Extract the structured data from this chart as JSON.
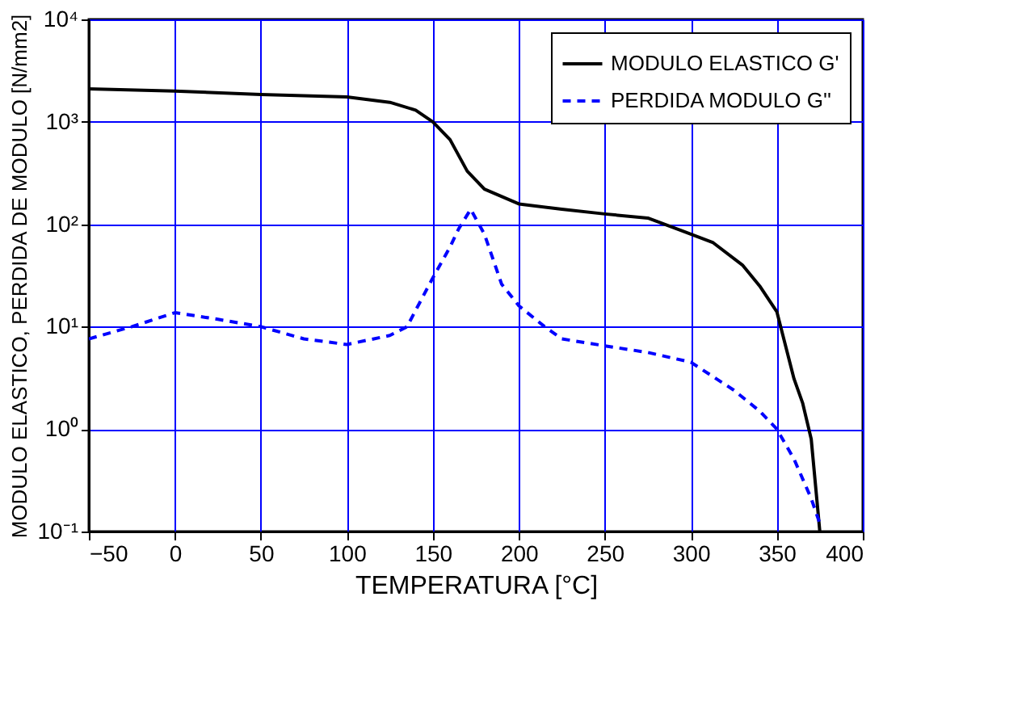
{
  "chart_data": {
    "type": "line",
    "xlabel": "TEMPERATURA [°C]",
    "ylabel": "MODULO ELASTICO, PERDIDA DE MODULO [N/mm2]",
    "xlim": [
      -50,
      400
    ],
    "xticks": [
      -50,
      0,
      50,
      100,
      150,
      200,
      250,
      300,
      350,
      400
    ],
    "ylim": [
      0.1,
      10000
    ],
    "yticks": [
      {
        "value": 0.1,
        "label": "10⁻¹"
      },
      {
        "value": 1,
        "label": "10⁰"
      },
      {
        "value": 10,
        "label": "10¹"
      },
      {
        "value": 100,
        "label": "10²"
      },
      {
        "value": 1000,
        "label": "10³"
      },
      {
        "value": 10000,
        "label": "10⁴"
      }
    ],
    "log": "y",
    "grid": true,
    "legend": "top right",
    "marker": "none",
    "series": [
      {
        "name": "MODULO ELASTICO G'",
        "color": "#000000",
        "line_style": "solid",
        "x": [
          -50,
          0,
          50,
          100,
          125,
          140,
          150,
          160,
          170,
          180,
          200,
          225,
          250,
          275,
          296,
          313,
          330,
          340,
          350,
          360,
          365,
          370,
          375
        ],
        "values": [
          2100,
          2000,
          1850,
          1750,
          1550,
          1300,
          1000,
          670,
          330,
          220,
          158,
          140,
          126,
          115,
          85,
          66,
          40,
          25,
          14,
          3.1,
          1.8,
          0.8,
          0.1
        ]
      },
      {
        "name": "PERDIDA MODULO G''",
        "color": "#0000ff",
        "line_style": "dashed",
        "x": [
          -50,
          -25,
          0,
          25,
          50,
          75,
          100,
          125,
          135,
          150,
          160,
          165,
          172,
          180,
          190,
          200,
          215,
          225,
          250,
          275,
          300,
          325,
          340,
          350,
          360,
          370,
          375
        ],
        "values": [
          7.6,
          10,
          13.7,
          11.8,
          10,
          7.6,
          6.7,
          8.2,
          10,
          30,
          60,
          90,
          140,
          80,
          26,
          16,
          10,
          7.6,
          6.5,
          5.6,
          4.5,
          2.4,
          1.5,
          1.0,
          0.51,
          0.21,
          0.12
        ]
      }
    ]
  }
}
